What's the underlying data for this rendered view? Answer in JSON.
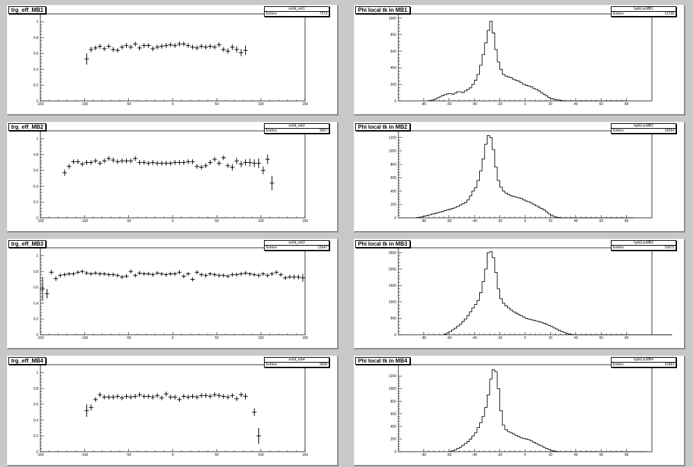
{
  "chart_data": [
    {
      "type": "scatter",
      "title": "trg_eff_MB1",
      "stats": {
        "name": "nohit_mb1",
        "label": "Entries",
        "entries": "7274"
      },
      "xlim": [
        -150,
        150
      ],
      "ylim": [
        0,
        1.1
      ],
      "xticks": [
        -150,
        -100,
        -50,
        0,
        50,
        100,
        150
      ],
      "yticks": [
        0,
        0.2,
        0.4,
        0.6,
        0.8,
        1
      ],
      "x": [
        -97.5,
        -92.5,
        -87.5,
        -82.5,
        -77.5,
        -72.5,
        -67.5,
        -62.5,
        -57.5,
        -52.5,
        -47.5,
        -42.5,
        -37.5,
        -32.5,
        -27.5,
        -22.5,
        -17.5,
        -12.5,
        -7.5,
        -2.5,
        2.5,
        7.5,
        12.5,
        17.5,
        22.5,
        27.5,
        32.5,
        37.5,
        42.5,
        47.5,
        52.5,
        57.5,
        62.5,
        67.5,
        72.5,
        77.5,
        82.5,
        87.5,
        92.5,
        97.5
      ],
      "y": [
        0.53,
        0.65,
        0.67,
        0.69,
        0.66,
        0.69,
        0.65,
        0.64,
        0.68,
        0.7,
        0.68,
        0.72,
        0.67,
        0.7,
        0.7,
        0.66,
        0.68,
        0.69,
        0.7,
        0.71,
        0.7,
        0.72,
        0.72,
        0.7,
        0.68,
        0.67,
        0.69,
        0.68,
        0.69,
        0.68,
        0.71,
        0.65,
        0.63,
        0.68,
        0.65,
        0.61,
        0.64,
        0,
        0,
        0
      ],
      "ey": [
        0.07,
        0.035,
        0.03,
        0.03,
        0.03,
        0.03,
        0.03,
        0.03,
        0.03,
        0.03,
        0.03,
        0.03,
        0.03,
        0.03,
        0.03,
        0.03,
        0.03,
        0.03,
        0.03,
        0.03,
        0.03,
        0.03,
        0.03,
        0.03,
        0.03,
        0.03,
        0.03,
        0.03,
        0.03,
        0.03,
        0.03,
        0.03,
        0.035,
        0.035,
        0.04,
        0.045,
        0.06,
        0,
        0,
        0
      ]
    },
    {
      "type": "bar",
      "title": "Phi local tk in MB1",
      "stats": {
        "name": "hphiLocMB1",
        "label": "Entries",
        "entries": "12738"
      },
      "xlim": [
        -100,
        100
      ],
      "ylim": [
        0,
        1050
      ],
      "xticks": [
        -80,
        -60,
        -40,
        -20,
        0,
        20,
        40,
        60,
        80
      ],
      "yticks": [
        0,
        200,
        400,
        600,
        800,
        1000
      ],
      "bin_start": -76,
      "bin_width": 2,
      "values": [
        5,
        10,
        20,
        35,
        50,
        65,
        75,
        85,
        90,
        80,
        95,
        110,
        110,
        100,
        120,
        140,
        160,
        200,
        250,
        320,
        430,
        560,
        700,
        850,
        960,
        820,
        620,
        470,
        380,
        320,
        300,
        290,
        280,
        260,
        250,
        240,
        220,
        200,
        190,
        180,
        170,
        150,
        140,
        120,
        100,
        80,
        60,
        40,
        30,
        20,
        15,
        10,
        5,
        0,
        0,
        0,
        0,
        0,
        0,
        0,
        0,
        0,
        0,
        0,
        0,
        0,
        0,
        0,
        0,
        0,
        0,
        0,
        0,
        0,
        0,
        0,
        0,
        0
      ]
    },
    {
      "type": "scatter",
      "title": "trg_eff_MB2",
      "stats": {
        "name": "nohit_mb2",
        "label": "Entries",
        "entries": "9007"
      },
      "xlim": [
        -150,
        150
      ],
      "ylim": [
        0,
        1.1
      ],
      "xticks": [
        -150,
        -100,
        -50,
        0,
        50,
        100,
        150
      ],
      "yticks": [
        0,
        0.2,
        0.4,
        0.6,
        0.8,
        1
      ],
      "x": [
        -122.5,
        -117.5,
        -112.5,
        -107.5,
        -102.5,
        -97.5,
        -92.5,
        -87.5,
        -82.5,
        -77.5,
        -72.5,
        -67.5,
        -62.5,
        -57.5,
        -52.5,
        -47.5,
        -42.5,
        -37.5,
        -32.5,
        -27.5,
        -22.5,
        -17.5,
        -12.5,
        -7.5,
        -2.5,
        2.5,
        7.5,
        12.5,
        17.5,
        22.5,
        27.5,
        32.5,
        37.5,
        42.5,
        47.5,
        52.5,
        57.5,
        62.5,
        67.5,
        72.5,
        77.5,
        82.5,
        87.5,
        92.5,
        97.5,
        102.5,
        107.5,
        112.5,
        117.5
      ],
      "y": [
        0.57,
        0.65,
        0.71,
        0.71,
        0.68,
        0.7,
        0.7,
        0.72,
        0.69,
        0.72,
        0.75,
        0.73,
        0.71,
        0.72,
        0.72,
        0.72,
        0.75,
        0.7,
        0.7,
        0.69,
        0.7,
        0.69,
        0.69,
        0.69,
        0.69,
        0.7,
        0.7,
        0.7,
        0.71,
        0.71,
        0.65,
        0.64,
        0.66,
        0.7,
        0.74,
        0.69,
        0.76,
        0.66,
        0.64,
        0.72,
        0.68,
        0.7,
        0.7,
        0.69,
        0.69,
        0.6,
        0.74,
        0.44,
        0
      ],
      "ey": [
        0.04,
        0.03,
        0.03,
        0.03,
        0.03,
        0.03,
        0.03,
        0.03,
        0.03,
        0.03,
        0.03,
        0.03,
        0.03,
        0.03,
        0.03,
        0.03,
        0.03,
        0.03,
        0.03,
        0.03,
        0.03,
        0.03,
        0.03,
        0.03,
        0.03,
        0.03,
        0.03,
        0.03,
        0.03,
        0.03,
        0.03,
        0.03,
        0.03,
        0.03,
        0.03,
        0.03,
        0.03,
        0.03,
        0.04,
        0.04,
        0.04,
        0.04,
        0.05,
        0.05,
        0.06,
        0.05,
        0.06,
        0.09,
        0
      ]
    },
    {
      "type": "bar",
      "title": "Phi local tk in MB2",
      "stats": {
        "name": "hphiLocMB2",
        "label": "Entries",
        "entries": "18284"
      },
      "xlim": [
        -100,
        100
      ],
      "ylim": [
        0,
        1300
      ],
      "xticks": [
        -80,
        -60,
        -40,
        -20,
        0,
        20,
        40,
        60,
        80
      ],
      "yticks": [
        0,
        200,
        400,
        600,
        800,
        1000,
        1200
      ],
      "bin_start": -86,
      "bin_width": 2,
      "values": [
        5,
        10,
        15,
        25,
        35,
        45,
        55,
        65,
        75,
        85,
        95,
        110,
        120,
        130,
        140,
        155,
        170,
        190,
        210,
        230,
        270,
        330,
        400,
        450,
        560,
        700,
        880,
        1100,
        1230,
        1200,
        1020,
        760,
        560,
        460,
        400,
        370,
        350,
        330,
        320,
        310,
        300,
        290,
        270,
        250,
        240,
        220,
        200,
        180,
        160,
        140,
        120,
        90,
        60,
        40,
        20,
        10,
        5,
        0,
        0,
        0,
        0,
        0,
        0,
        0,
        0,
        0,
        0,
        0,
        0,
        0,
        0,
        0,
        0,
        0,
        0,
        0,
        0,
        0,
        0,
        0,
        0,
        0,
        0,
        0,
        0,
        0
      ]
    },
    {
      "type": "scatter",
      "title": "trg_eff_MB3",
      "stats": {
        "name": "nohit_mb3",
        "label": "Entries",
        "entries": "15647"
      },
      "xlim": [
        -150,
        150
      ],
      "ylim": [
        0,
        1.1
      ],
      "xticks": [
        -150,
        -100,
        -50,
        0,
        50,
        100,
        150
      ],
      "yticks": [
        0,
        0.2,
        0.4,
        0.6,
        0.8,
        1
      ],
      "x": [
        -147.5,
        -142.5,
        -137.5,
        -132.5,
        -127.5,
        -122.5,
        -117.5,
        -112.5,
        -107.5,
        -102.5,
        -97.5,
        -92.5,
        -87.5,
        -82.5,
        -77.5,
        -72.5,
        -67.5,
        -62.5,
        -57.5,
        -52.5,
        -47.5,
        -42.5,
        -37.5,
        -32.5,
        -27.5,
        -22.5,
        -17.5,
        -12.5,
        -7.5,
        -2.5,
        2.5,
        7.5,
        12.5,
        17.5,
        22.5,
        27.5,
        32.5,
        37.5,
        42.5,
        47.5,
        52.5,
        57.5,
        62.5,
        67.5,
        72.5,
        77.5,
        82.5,
        87.5,
        92.5,
        97.5,
        102.5,
        107.5,
        112.5,
        117.5,
        122.5,
        127.5,
        132.5,
        137.5,
        142.5,
        147.5
      ],
      "y": [
        0.58,
        0.52,
        0.79,
        0.71,
        0.75,
        0.76,
        0.77,
        0.77,
        0.79,
        0.8,
        0.78,
        0.77,
        0.78,
        0.77,
        0.77,
        0.76,
        0.76,
        0.75,
        0.73,
        0.74,
        0.8,
        0.75,
        0.78,
        0.77,
        0.77,
        0.76,
        0.78,
        0.77,
        0.76,
        0.77,
        0.77,
        0.79,
        0.74,
        0.77,
        0.7,
        0.79,
        0.76,
        0.75,
        0.77,
        0.76,
        0.75,
        0.75,
        0.74,
        0.76,
        0.76,
        0.77,
        0.78,
        0.77,
        0.76,
        0.75,
        0.77,
        0.75,
        0.77,
        0.79,
        0.76,
        0.72,
        0.73,
        0.73,
        0.73,
        0.72
      ],
      "ey": [
        0.15,
        0.06,
        0.03,
        0.03,
        0.025,
        0.025,
        0.025,
        0.025,
        0.025,
        0.025,
        0.025,
        0.025,
        0.025,
        0.025,
        0.025,
        0.025,
        0.025,
        0.025,
        0.025,
        0.025,
        0.025,
        0.025,
        0.025,
        0.025,
        0.025,
        0.025,
        0.025,
        0.025,
        0.025,
        0.025,
        0.025,
        0.025,
        0.025,
        0.025,
        0.025,
        0.025,
        0.025,
        0.025,
        0.025,
        0.025,
        0.025,
        0.025,
        0.025,
        0.025,
        0.025,
        0.025,
        0.025,
        0.025,
        0.025,
        0.025,
        0.025,
        0.025,
        0.025,
        0.025,
        0.025,
        0.025,
        0.025,
        0.03,
        0.03,
        0.05
      ]
    },
    {
      "type": "bar",
      "title": "Phi local tk in MB3",
      "stats": {
        "name": "hphiLocMB3",
        "label": "Entries",
        "entries": "33975"
      },
      "xlim": [
        -100,
        100
      ],
      "ylim": [
        0,
        2650
      ],
      "xticks": [
        -80,
        -60,
        -40,
        -20,
        0,
        20,
        40,
        60,
        80
      ],
      "yticks": [
        0,
        500,
        1000,
        1500,
        2000,
        2500
      ],
      "bin_start": -64,
      "bin_width": 2,
      "values": [
        20,
        60,
        100,
        150,
        200,
        260,
        320,
        400,
        480,
        580,
        700,
        820,
        920,
        1050,
        1280,
        1620,
        2000,
        2500,
        2530,
        2350,
        1900,
        1400,
        1100,
        960,
        880,
        820,
        760,
        700,
        660,
        620,
        580,
        540,
        500,
        480,
        460,
        440,
        420,
        400,
        380,
        350,
        320,
        290,
        250,
        210,
        170,
        130,
        100,
        70,
        40,
        20,
        10,
        5,
        0,
        0,
        0,
        0,
        0,
        0,
        0,
        0,
        0,
        0,
        0,
        0,
        0,
        0,
        0,
        0,
        0,
        0,
        0,
        0,
        0,
        0,
        0,
        0,
        0,
        0,
        0,
        0,
        0,
        0,
        0,
        0,
        0,
        0,
        0,
        0,
        0,
        0
      ]
    },
    {
      "type": "scatter",
      "title": "trg_eff_MB4",
      "stats": {
        "name": "nohit_mb4",
        "label": "Entries",
        "entries": "9608"
      },
      "xlim": [
        -150,
        150
      ],
      "ylim": [
        0,
        1.1
      ],
      "xticks": [
        -150,
        -100,
        -50,
        0,
        50,
        100,
        150
      ],
      "yticks": [
        0,
        0.2,
        0.4,
        0.6,
        0.8,
        1
      ],
      "x": [
        -97.5,
        -92.5,
        -87.5,
        -82.5,
        -77.5,
        -72.5,
        -67.5,
        -62.5,
        -57.5,
        -52.5,
        -47.5,
        -42.5,
        -37.5,
        -32.5,
        -27.5,
        -22.5,
        -17.5,
        -12.5,
        -7.5,
        -2.5,
        2.5,
        7.5,
        12.5,
        17.5,
        22.5,
        27.5,
        32.5,
        37.5,
        42.5,
        47.5,
        52.5,
        57.5,
        62.5,
        67.5,
        72.5,
        77.5,
        82.5,
        87.5,
        92.5,
        97.5
      ],
      "y": [
        0.52,
        0.56,
        0.66,
        0.72,
        0.69,
        0.69,
        0.69,
        0.7,
        0.68,
        0.7,
        0.69,
        0.7,
        0.72,
        0.7,
        0.7,
        0.69,
        0.71,
        0.68,
        0.73,
        0.69,
        0.69,
        0.66,
        0.7,
        0.69,
        0.7,
        0.69,
        0.71,
        0.71,
        0.7,
        0.72,
        0.71,
        0.7,
        0.69,
        0.71,
        0.67,
        0.72,
        0.7,
        0,
        0.5,
        0.2
      ],
      "ey": [
        0.08,
        0.04,
        0.03,
        0.03,
        0.03,
        0.03,
        0.03,
        0.03,
        0.03,
        0.03,
        0.03,
        0.03,
        0.03,
        0.03,
        0.03,
        0.03,
        0.03,
        0.03,
        0.03,
        0.03,
        0.03,
        0.03,
        0.03,
        0.03,
        0.03,
        0.03,
        0.03,
        0.03,
        0.03,
        0.03,
        0.03,
        0.03,
        0.03,
        0.03,
        0.03,
        0.03,
        0.04,
        0,
        0.05,
        0.1
      ]
    },
    {
      "type": "bar",
      "title": "Phi local tk in MB4",
      "stats": {
        "name": "hphiLocMB4",
        "label": "Entries",
        "entries": "15983"
      },
      "xlim": [
        -100,
        100
      ],
      "ylim": [
        0,
        1380
      ],
      "xticks": [
        -80,
        -60,
        -40,
        -20,
        0,
        20,
        40,
        60,
        80
      ],
      "yticks": [
        0,
        200,
        400,
        600,
        800,
        1000,
        1200
      ],
      "bin_start": -60,
      "bin_width": 2,
      "values": [
        5,
        15,
        30,
        50,
        70,
        100,
        130,
        160,
        200,
        250,
        300,
        380,
        460,
        560,
        700,
        900,
        1150,
        1300,
        1270,
        1000,
        650,
        420,
        350,
        320,
        300,
        280,
        260,
        240,
        220,
        210,
        200,
        190,
        170,
        150,
        130,
        110,
        90,
        70,
        50,
        35,
        20,
        10,
        5,
        0,
        0,
        0,
        0,
        0,
        0,
        0,
        0,
        0,
        0,
        0,
        0,
        0,
        0,
        0,
        0,
        0,
        0,
        0,
        0,
        0,
        0,
        0,
        0,
        0,
        0,
        0,
        0,
        0,
        0,
        0,
        0,
        0,
        0,
        0
      ]
    }
  ]
}
